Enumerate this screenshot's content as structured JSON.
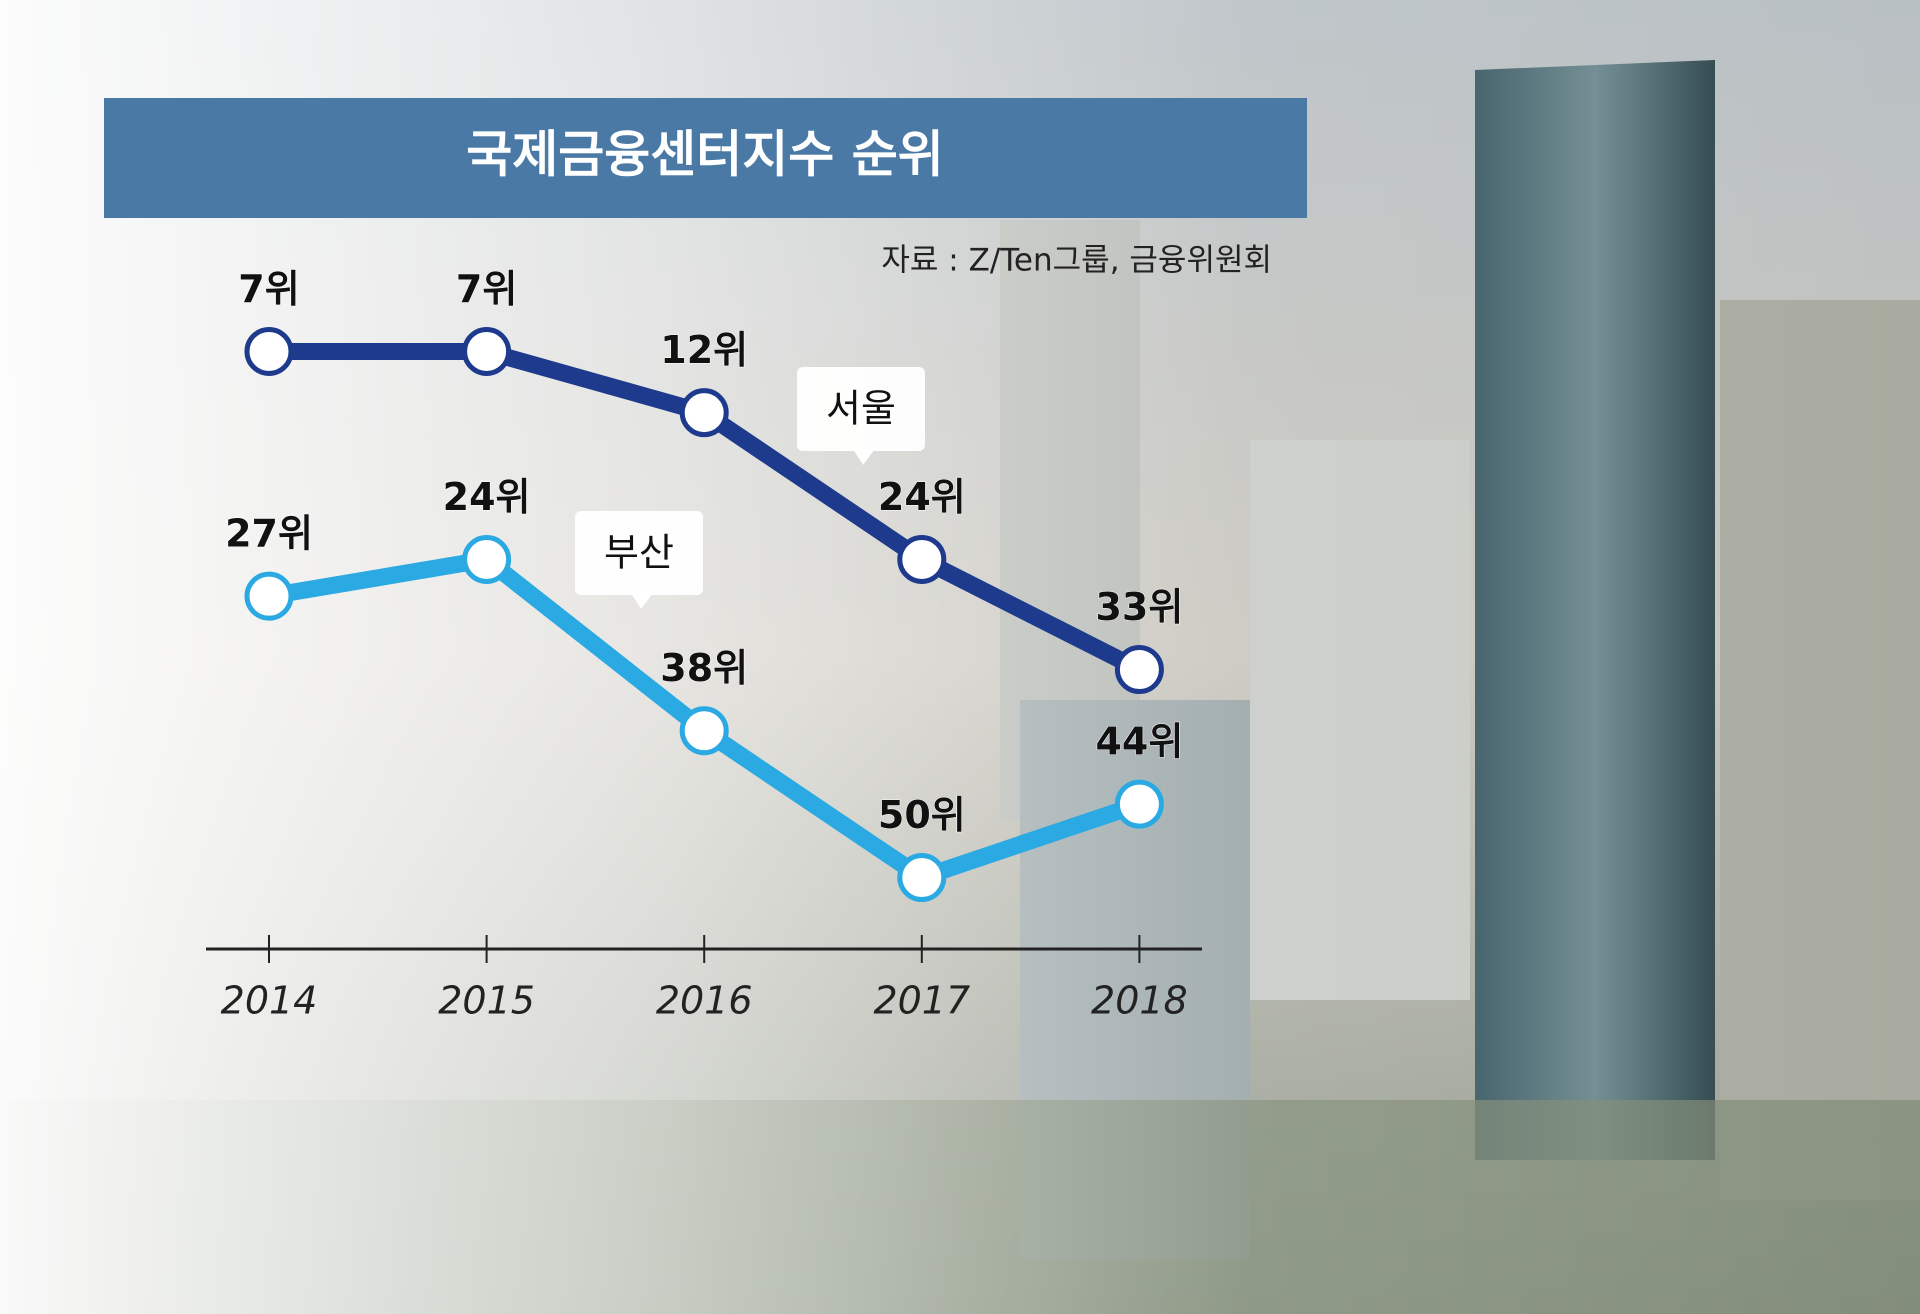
{
  "chart_data": {
    "type": "line",
    "title": "국제금융센터지수 순위",
    "source": "자료 : Z/Ten그룹, 금융위원회",
    "categories": [
      "2014",
      "2015",
      "2016",
      "2017",
      "2018"
    ],
    "ylim": [
      52,
      5
    ],
    "series": [
      {
        "name": "서울",
        "color": "#1e3a8c",
        "values": [
          7,
          7,
          12,
          24,
          33
        ],
        "value_labels": [
          "7위",
          "7위",
          "12위",
          "24위",
          "33위"
        ]
      },
      {
        "name": "부산",
        "color": "#2aa9e2",
        "values": [
          27,
          24,
          38,
          50,
          44
        ],
        "value_labels": [
          "27위",
          "24위",
          "38위",
          "50위",
          "44위"
        ]
      }
    ]
  }
}
